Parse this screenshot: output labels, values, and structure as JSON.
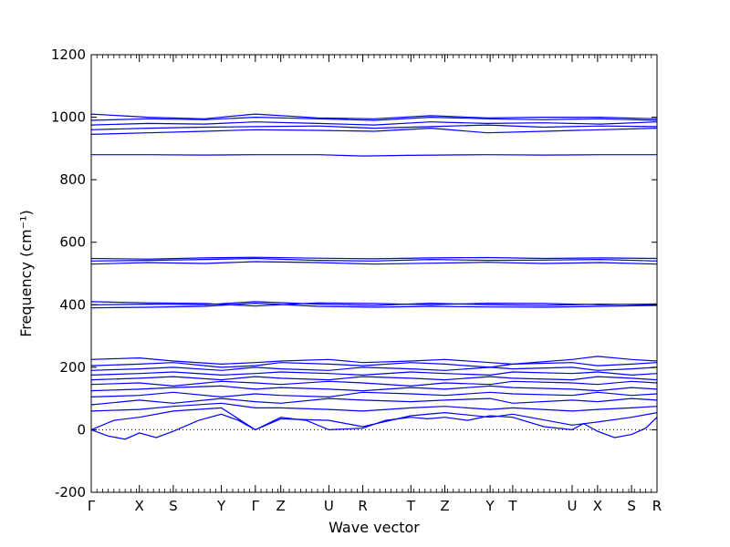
{
  "chart_data": {
    "type": "line",
    "xlabel": "Wave vector",
    "ylabel": "Frequency (cm⁻¹)",
    "ylim": [
      -200,
      1200
    ],
    "y_ticks": [
      -200,
      0,
      200,
      400,
      600,
      800,
      1000,
      1200
    ],
    "x_ticks": [
      {
        "label": "Γ",
        "x": 0.0
      },
      {
        "label": "X",
        "x": 0.085
      },
      {
        "label": "S",
        "x": 0.145
      },
      {
        "label": "Y",
        "x": 0.23
      },
      {
        "label": "Γ",
        "x": 0.29
      },
      {
        "label": "Z",
        "x": 0.335
      },
      {
        "label": "U",
        "x": 0.42
      },
      {
        "label": "R",
        "x": 0.48
      },
      {
        "label": "T",
        "x": 0.565
      },
      {
        "label": "Z",
        "x": 0.625
      },
      {
        "label": "Y",
        "x": 0.705
      },
      {
        "label": "T",
        "x": 0.745
      },
      {
        "label": "U",
        "x": 0.85
      },
      {
        "label": "X",
        "x": 0.895
      },
      {
        "label": "S",
        "x": 0.955
      },
      {
        "label": "R",
        "x": 1.0
      }
    ],
    "zero_line": true,
    "line_color": "#0000ff",
    "series": [
      {
        "x": [
          0.0,
          0.03,
          0.06,
          0.085,
          0.115,
          0.145,
          0.19,
          0.23,
          0.26,
          0.29,
          0.335,
          0.38,
          0.42,
          0.48,
          0.52,
          0.565,
          0.595,
          0.625,
          0.665,
          0.705,
          0.745,
          0.8,
          0.85,
          0.87,
          0.895,
          0.925,
          0.955,
          0.98,
          1.0
        ],
        "values": [
          0,
          -20,
          -30,
          -10,
          -25,
          -5,
          30,
          50,
          30,
          0,
          40,
          30,
          0,
          5,
          30,
          40,
          35,
          40,
          30,
          45,
          40,
          10,
          0,
          20,
          -5,
          -25,
          -15,
          5,
          40
        ]
      },
      {
        "x": [
          0.0,
          0.04,
          0.085,
          0.145,
          0.23,
          0.29,
          0.335,
          0.42,
          0.48,
          0.565,
          0.625,
          0.705,
          0.745,
          0.85,
          0.895,
          0.955,
          1.0
        ],
        "values": [
          0,
          30,
          40,
          60,
          70,
          0,
          35,
          30,
          10,
          45,
          55,
          40,
          50,
          15,
          25,
          40,
          55
        ]
      },
      {
        "x": [
          0.0,
          0.085,
          0.145,
          0.23,
          0.29,
          0.335,
          0.42,
          0.48,
          0.565,
          0.625,
          0.705,
          0.745,
          0.85,
          0.895,
          0.955,
          1.0
        ],
        "values": [
          60,
          65,
          75,
          85,
          70,
          70,
          65,
          60,
          70,
          75,
          65,
          70,
          60,
          65,
          70,
          75
        ]
      },
      {
        "x": [
          0.0,
          0.085,
          0.145,
          0.23,
          0.29,
          0.335,
          0.42,
          0.48,
          0.565,
          0.625,
          0.705,
          0.745,
          0.85,
          0.895,
          0.955,
          1.0
        ],
        "values": [
          80,
          95,
          85,
          100,
          90,
          85,
          100,
          95,
          90,
          95,
          100,
          85,
          95,
          90,
          100,
          95
        ]
      },
      {
        "x": [
          0.0,
          0.085,
          0.145,
          0.23,
          0.29,
          0.335,
          0.42,
          0.48,
          0.565,
          0.625,
          0.705,
          0.745,
          0.85,
          0.895,
          0.955,
          1.0
        ],
        "values": [
          105,
          110,
          120,
          105,
          115,
          110,
          105,
          120,
          115,
          110,
          120,
          115,
          110,
          120,
          110,
          115
        ]
      },
      {
        "x": [
          0.0,
          0.085,
          0.145,
          0.23,
          0.29,
          0.335,
          0.42,
          0.48,
          0.565,
          0.625,
          0.705,
          0.745,
          0.85,
          0.895,
          0.955,
          1.0
        ],
        "values": [
          125,
          130,
          135,
          140,
          130,
          135,
          130,
          125,
          135,
          130,
          140,
          135,
          130,
          125,
          135,
          130
        ]
      },
      {
        "x": [
          0.0,
          0.085,
          0.145,
          0.23,
          0.29,
          0.335,
          0.42,
          0.48,
          0.565,
          0.625,
          0.705,
          0.745,
          0.85,
          0.895,
          0.955,
          1.0
        ],
        "values": [
          145,
          150,
          140,
          155,
          150,
          145,
          155,
          150,
          140,
          150,
          145,
          155,
          150,
          145,
          155,
          150
        ]
      },
      {
        "x": [
          0.0,
          0.085,
          0.145,
          0.23,
          0.29,
          0.335,
          0.42,
          0.48,
          0.565,
          0.625,
          0.705,
          0.745,
          0.85,
          0.895,
          0.955,
          1.0
        ],
        "values": [
          160,
          165,
          170,
          160,
          170,
          165,
          160,
          170,
          165,
          160,
          170,
          165,
          160,
          170,
          165,
          160
        ]
      },
      {
        "x": [
          0.0,
          0.085,
          0.145,
          0.23,
          0.29,
          0.335,
          0.42,
          0.48,
          0.565,
          0.625,
          0.705,
          0.745,
          0.85,
          0.895,
          0.955,
          1.0
        ],
        "values": [
          175,
          180,
          185,
          175,
          180,
          185,
          180,
          175,
          185,
          180,
          175,
          185,
          180,
          185,
          175,
          180
        ]
      },
      {
        "x": [
          0.0,
          0.085,
          0.145,
          0.23,
          0.29,
          0.335,
          0.42,
          0.48,
          0.565,
          0.625,
          0.705,
          0.745,
          0.85,
          0.895,
          0.955,
          1.0
        ],
        "values": [
          190,
          195,
          200,
          190,
          200,
          195,
          190,
          200,
          195,
          190,
          200,
          195,
          200,
          190,
          195,
          200
        ]
      },
      {
        "x": [
          0.0,
          0.085,
          0.145,
          0.23,
          0.29,
          0.335,
          0.42,
          0.48,
          0.565,
          0.625,
          0.705,
          0.745,
          0.85,
          0.895,
          0.955,
          1.0
        ],
        "values": [
          205,
          210,
          215,
          200,
          205,
          215,
          210,
          205,
          215,
          210,
          200,
          210,
          215,
          205,
          210,
          215
        ]
      },
      {
        "x": [
          0.0,
          0.085,
          0.145,
          0.23,
          0.29,
          0.335,
          0.42,
          0.48,
          0.565,
          0.625,
          0.705,
          0.745,
          0.85,
          0.895,
          0.955,
          1.0
        ],
        "values": [
          225,
          230,
          220,
          210,
          215,
          220,
          225,
          215,
          220,
          225,
          215,
          210,
          225,
          235,
          225,
          220
        ]
      },
      {
        "x": [
          0.0,
          0.1,
          0.2,
          0.29,
          0.4,
          0.5,
          0.6,
          0.7,
          0.8,
          0.9,
          1.0
        ],
        "values": [
          390,
          392,
          395,
          405,
          395,
          392,
          395,
          393,
          392,
          395,
          398
        ]
      },
      {
        "x": [
          0.0,
          0.1,
          0.2,
          0.29,
          0.4,
          0.5,
          0.6,
          0.7,
          0.8,
          0.9,
          1.0
        ],
        "values": [
          400,
          402,
          400,
          410,
          402,
          398,
          405,
          400,
          398,
          402,
          400
        ]
      },
      {
        "x": [
          0.0,
          0.1,
          0.2,
          0.29,
          0.4,
          0.5,
          0.6,
          0.7,
          0.8,
          0.9,
          1.0
        ],
        "values": [
          410,
          406,
          404,
          396,
          406,
          404,
          400,
          405,
          404,
          400,
          403
        ]
      },
      {
        "x": [
          0.0,
          0.1,
          0.2,
          0.29,
          0.4,
          0.5,
          0.6,
          0.7,
          0.8,
          0.9,
          1.0
        ],
        "values": [
          530,
          535,
          532,
          538,
          535,
          530,
          533,
          536,
          532,
          535,
          530
        ]
      },
      {
        "x": [
          0.0,
          0.1,
          0.2,
          0.29,
          0.4,
          0.5,
          0.6,
          0.7,
          0.8,
          0.9,
          1.0
        ],
        "values": [
          540,
          542,
          545,
          548,
          542,
          540,
          545,
          542,
          543,
          545,
          540
        ]
      },
      {
        "x": [
          0.0,
          0.1,
          0.2,
          0.29,
          0.4,
          0.5,
          0.6,
          0.7,
          0.8,
          0.9,
          1.0
        ],
        "values": [
          548,
          546,
          550,
          552,
          549,
          547,
          550,
          551,
          548,
          550,
          548
        ]
      },
      {
        "x": [
          0.0,
          0.1,
          0.2,
          0.29,
          0.4,
          0.48,
          0.56,
          0.7,
          0.8,
          0.9,
          1.0
        ],
        "values": [
          880,
          880,
          879,
          880,
          880,
          876,
          878,
          880,
          879,
          880,
          880
        ]
      },
      {
        "x": [
          0.0,
          0.1,
          0.2,
          0.29,
          0.4,
          0.5,
          0.6,
          0.7,
          0.8,
          0.9,
          1.0
        ],
        "values": [
          945,
          950,
          955,
          960,
          958,
          955,
          965,
          950,
          955,
          960,
          965
        ]
      },
      {
        "x": [
          0.0,
          0.1,
          0.2,
          0.29,
          0.4,
          0.5,
          0.6,
          0.7,
          0.8,
          0.9,
          1.0
        ],
        "values": [
          960,
          965,
          968,
          970,
          972,
          965,
          970,
          975,
          968,
          972,
          970
        ]
      },
      {
        "x": [
          0.0,
          0.1,
          0.2,
          0.29,
          0.4,
          0.5,
          0.6,
          0.7,
          0.8,
          0.9,
          1.0
        ],
        "values": [
          975,
          980,
          978,
          985,
          980,
          975,
          985,
          980,
          982,
          978,
          985
        ]
      },
      {
        "x": [
          0.0,
          0.1,
          0.2,
          0.29,
          0.4,
          0.5,
          0.6,
          0.7,
          0.8,
          0.9,
          1.0
        ],
        "values": [
          990,
          995,
          992,
          1000,
          995,
          990,
          1000,
          995,
          992,
          995,
          990
        ]
      },
      {
        "x": [
          0.0,
          0.1,
          0.2,
          0.29,
          0.4,
          0.5,
          0.6,
          0.7,
          0.8,
          0.9,
          1.0
        ],
        "values": [
          1010,
          1000,
          995,
          1010,
          998,
          995,
          1005,
          998,
          1000,
          1000,
          995
        ]
      }
    ]
  }
}
